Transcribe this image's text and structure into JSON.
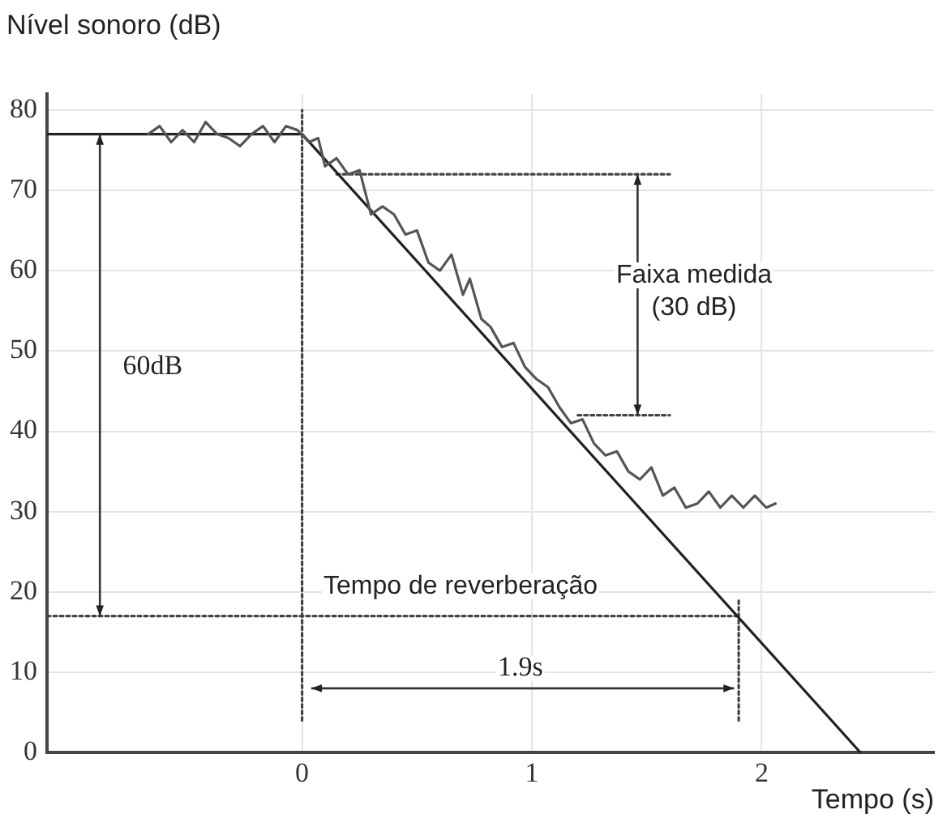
{
  "chart_data": {
    "type": "line",
    "xlabel": "Tempo (s)",
    "ylabel": "Nível sonoro (dB)",
    "xlim": [
      -1.11,
      2.75
    ],
    "ylim": [
      0,
      82
    ],
    "xticks": [
      0,
      1,
      2
    ],
    "yticks": [
      0,
      10,
      20,
      30,
      40,
      50,
      60,
      70,
      80
    ],
    "grid": true,
    "legend": false,
    "marker": "none",
    "series": [
      {
        "color": "#555555",
        "x": [
          -0.67,
          -0.62,
          -0.57,
          -0.52,
          -0.47,
          -0.42,
          -0.37,
          -0.32,
          -0.27,
          -0.22,
          -0.17,
          -0.12,
          -0.07,
          -0.02,
          0.03,
          0.07,
          0.1,
          0.15,
          0.2,
          0.25,
          0.3,
          0.35,
          0.4,
          0.45,
          0.5,
          0.55,
          0.6,
          0.65,
          0.7,
          0.73,
          0.78,
          0.82,
          0.87,
          0.92,
          0.97,
          1.02,
          1.07,
          1.12,
          1.17,
          1.22,
          1.27,
          1.32,
          1.37,
          1.42,
          1.47,
          1.52,
          1.57,
          1.62,
          1.67,
          1.72,
          1.77,
          1.82,
          1.87,
          1.92,
          1.97,
          2.02,
          2.06
        ],
        "values": [
          77,
          78,
          76,
          77.5,
          76,
          78.5,
          77,
          76.5,
          75.5,
          77,
          78,
          76,
          78,
          77.5,
          76,
          76.5,
          73,
          74,
          72,
          72.5,
          67,
          68,
          67,
          64.5,
          65,
          61,
          60,
          62,
          57,
          59,
          54,
          53,
          50.5,
          51,
          48,
          46.5,
          45.5,
          43,
          41,
          41.5,
          38.5,
          37,
          37.5,
          35,
          34,
          35.5,
          32,
          33,
          30.5,
          31,
          32.5,
          30.5,
          32,
          30.5,
          32,
          30.5,
          31
        ]
      },
      {
        "color": "#222222",
        "x": [
          -1.11,
          0,
          2.43
        ],
        "values": [
          77,
          77,
          0
        ]
      },
      {
        "color": "#444444",
        "line_style": "dotted",
        "x": [
          -1.11,
          1.9
        ],
        "values": [
          17,
          17
        ]
      },
      {
        "color": "#444444",
        "line_style": "dotted",
        "x": [
          0,
          0
        ],
        "values": [
          4,
          80
        ]
      },
      {
        "color": "#444444",
        "line_style": "dotted",
        "x": [
          1.9,
          1.9
        ],
        "values": [
          4,
          19
        ]
      },
      {
        "color": "#444444",
        "line_style": "dotted",
        "x": [
          0.15,
          1.6
        ],
        "values": [
          72,
          72
        ]
      },
      {
        "color": "#444444",
        "line_style": "dotted",
        "x": [
          1.2,
          1.6
        ],
        "values": [
          42,
          42
        ]
      }
    ],
    "annotations": [
      {
        "text": "60dB",
        "x": -0.65,
        "y": 48
      },
      "Faixa medida\n(30 dB)",
      "Tempo de reverberação",
      {
        "text": "1.9s",
        "x": 0.95,
        "y": 10.5
      }
    ]
  }
}
